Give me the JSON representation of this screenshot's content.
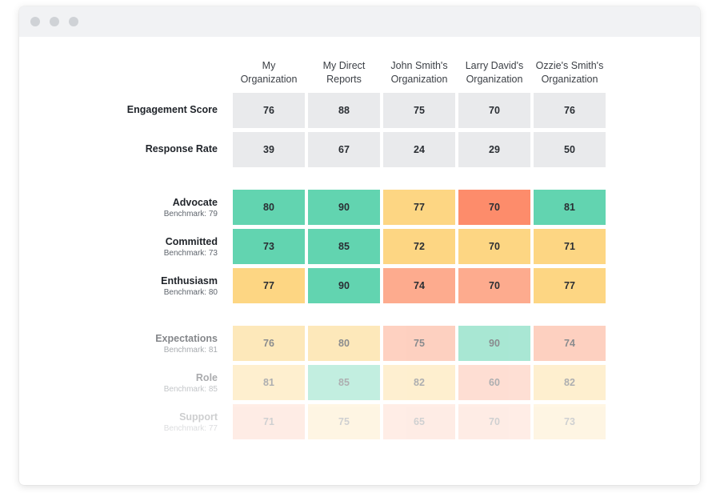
{
  "colors": {
    "neutral": "#e9eaec",
    "green": "#62d4b0",
    "yellow": "#fdd683",
    "salmon": "#fdab8e",
    "orange": "#fd8c6b"
  },
  "columns": [
    {
      "label": "My\nOrganization"
    },
    {
      "label": "My Direct\nReports"
    },
    {
      "label": "John Smith's\nOrganization"
    },
    {
      "label": "Larry David's\nOrganization"
    },
    {
      "label": "Ozzie's Smith's\nOrganization"
    }
  ],
  "rows": [
    {
      "label": "Engagement Score",
      "benchmark": "",
      "values": [
        "76",
        "88",
        "75",
        "70",
        "76"
      ],
      "colors": [
        "neutral",
        "neutral",
        "neutral",
        "neutral",
        "neutral"
      ]
    },
    {
      "label": "Response Rate",
      "benchmark": "",
      "values": [
        "39",
        "67",
        "24",
        "29",
        "50"
      ],
      "colors": [
        "neutral",
        "neutral",
        "neutral",
        "neutral",
        "neutral"
      ]
    },
    {
      "label": "Advocate",
      "benchmark": "Benchmark: 79",
      "values": [
        "80",
        "90",
        "77",
        "70",
        "81"
      ],
      "colors": [
        "green",
        "green",
        "yellow",
        "orange",
        "green"
      ]
    },
    {
      "label": "Committed",
      "benchmark": "Benchmark: 73",
      "values": [
        "73",
        "85",
        "72",
        "70",
        "71"
      ],
      "colors": [
        "green",
        "green",
        "yellow",
        "yellow",
        "yellow"
      ]
    },
    {
      "label": "Enthusiasm",
      "benchmark": "Benchmark: 80",
      "values": [
        "77",
        "90",
        "74",
        "70",
        "77"
      ],
      "colors": [
        "yellow",
        "green",
        "salmon",
        "salmon",
        "yellow"
      ]
    },
    {
      "label": "Expectations",
      "benchmark": "Benchmark: 81",
      "values": [
        "76",
        "80",
        "75",
        "90",
        "74"
      ],
      "colors": [
        "yellow",
        "yellow",
        "salmon",
        "green",
        "salmon"
      ]
    },
    {
      "label": "Role",
      "benchmark": "Benchmark: 85",
      "values": [
        "81",
        "85",
        "82",
        "60",
        "82"
      ],
      "colors": [
        "yellow",
        "green",
        "yellow",
        "salmon",
        "yellow"
      ]
    },
    {
      "label": "Support",
      "benchmark": "Benchmark: 77",
      "values": [
        "71",
        "75",
        "65",
        "70",
        "73"
      ],
      "colors": [
        "salmon",
        "yellow",
        "salmon",
        "salmon",
        "yellow"
      ]
    }
  ]
}
